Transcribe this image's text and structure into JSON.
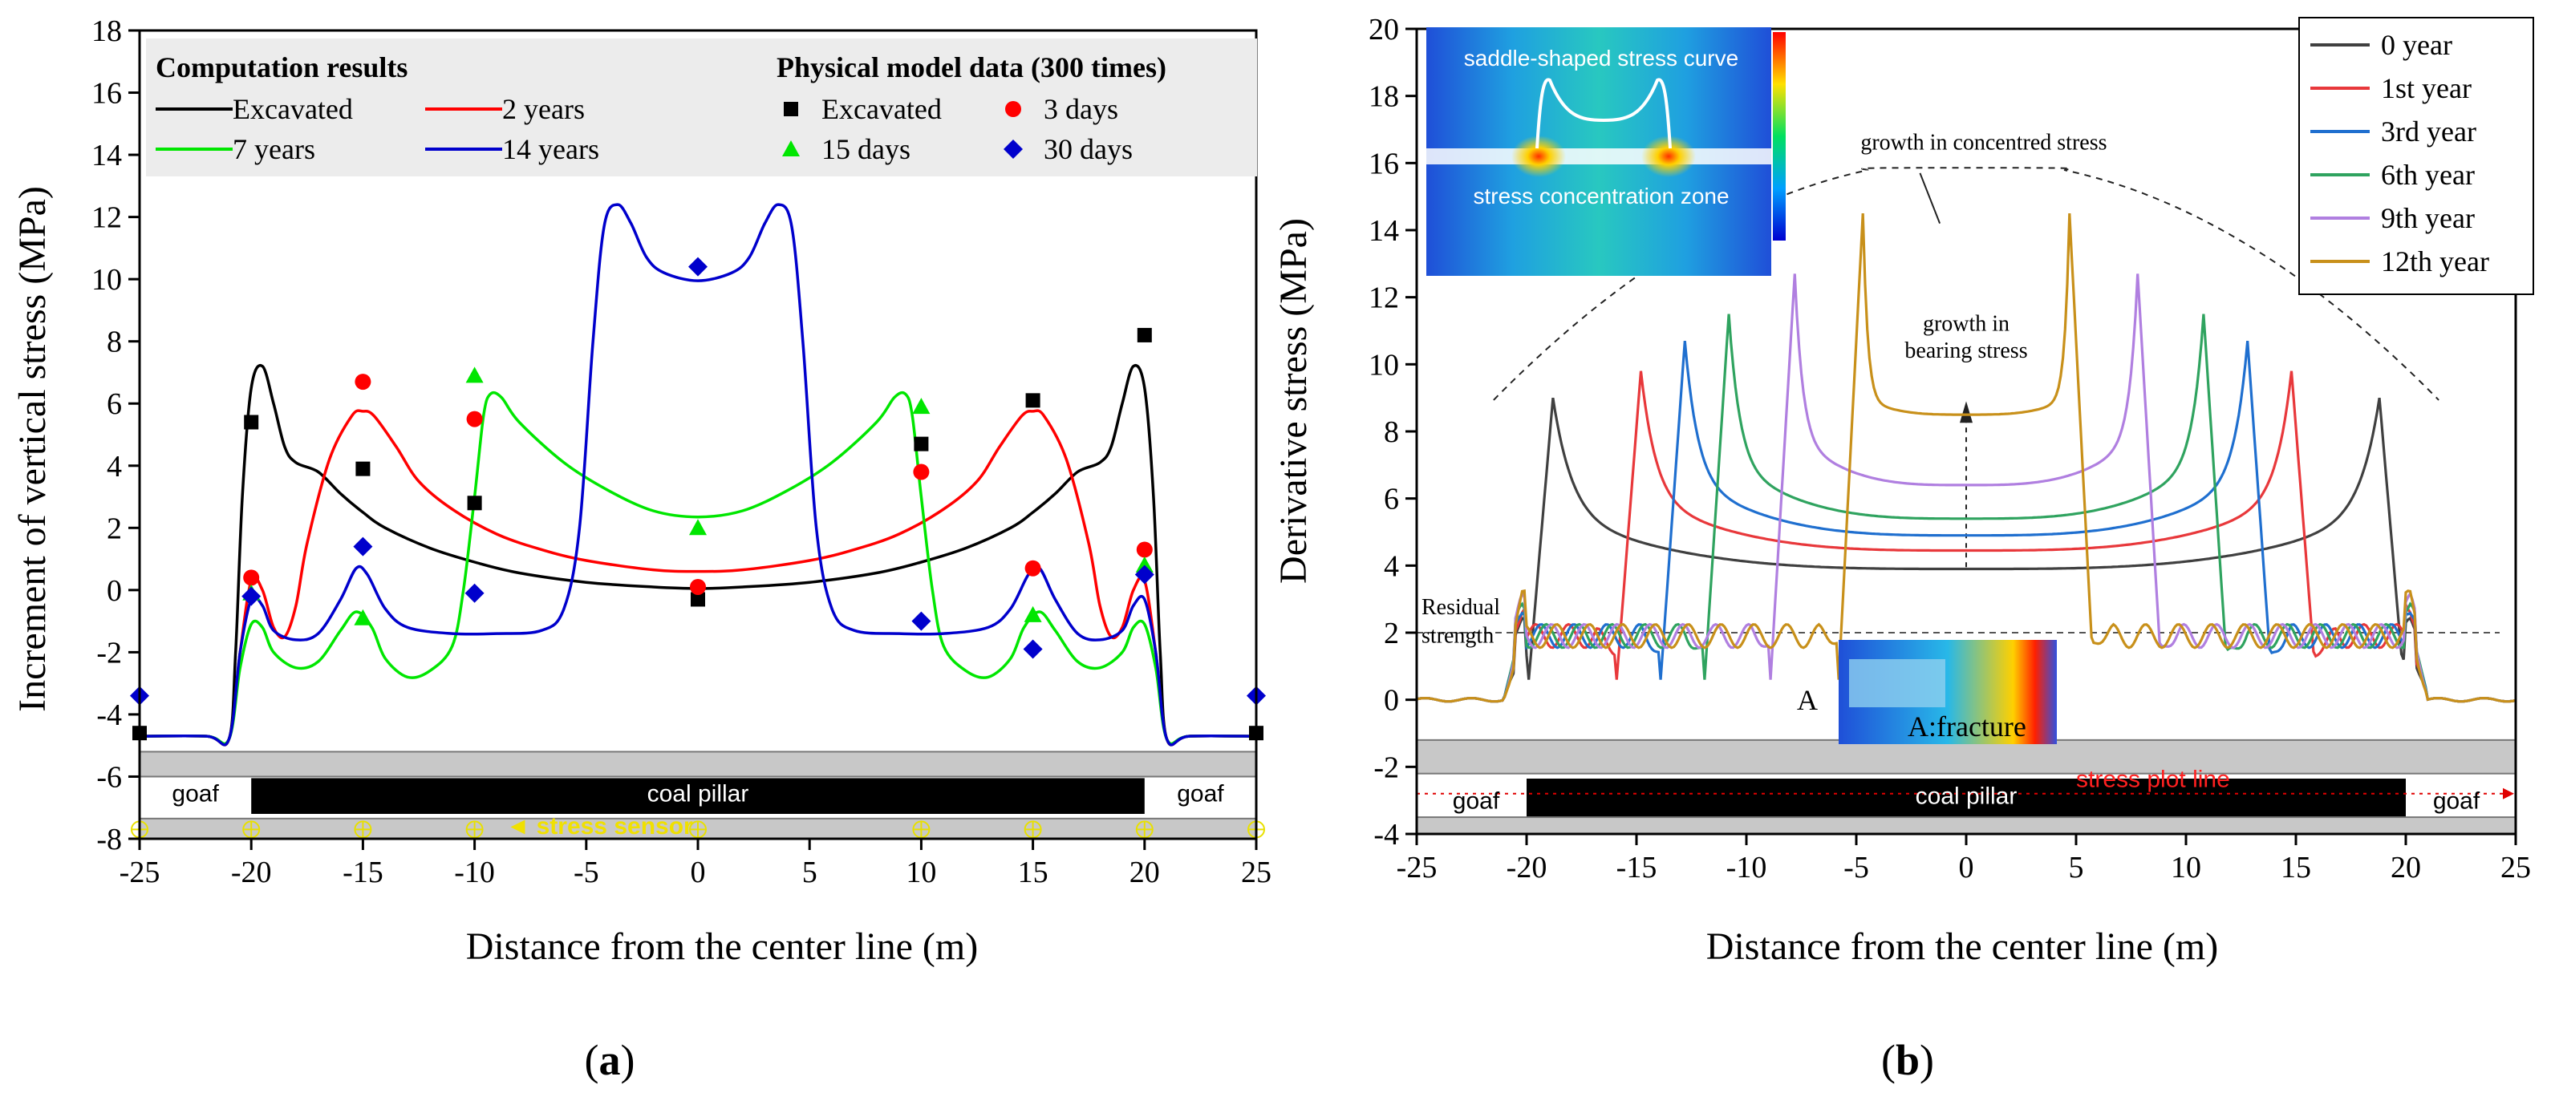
{
  "chart_data": [
    {
      "id": "a",
      "type": "line",
      "panel_label": "(a)",
      "panel_letter": "a",
      "xlabel": "Distance from the center line (m)",
      "ylabel": "Increment of vertical stress (MPa)",
      "xlim": [
        -25,
        25
      ],
      "ylim": [
        -8,
        18
      ],
      "xticks": [
        -25,
        -20,
        -15,
        -10,
        -5,
        0,
        5,
        10,
        15,
        20,
        25
      ],
      "yticks": [
        -8,
        -6,
        -4,
        -2,
        0,
        2,
        4,
        6,
        8,
        10,
        12,
        14,
        16,
        18
      ],
      "legend": {
        "computation_title": "Computation results",
        "physical_title": "Physical model data (300 times)"
      },
      "series": [
        {
          "name": "Excavated",
          "color": "#000000",
          "kind": "line",
          "points": [
            [
              -25,
              -4.7
            ],
            [
              -22,
              -4.7
            ],
            [
              -21,
              -4.8
            ],
            [
              -20.7,
              -2
            ],
            [
              -20.4,
              3
            ],
            [
              -20,
              6.5
            ],
            [
              -19.5,
              7.2
            ],
            [
              -19,
              6
            ],
            [
              -18.5,
              4.6
            ],
            [
              -18,
              4.1
            ],
            [
              -17,
              3.8
            ],
            [
              -16,
              3.1
            ],
            [
              -15,
              2.5
            ],
            [
              -14,
              2.0
            ],
            [
              -12,
              1.35
            ],
            [
              -10,
              0.9
            ],
            [
              -8,
              0.55
            ],
            [
              -5,
              0.25
            ],
            [
              -2,
              0.1
            ],
            [
              0,
              0.05
            ],
            [
              2,
              0.1
            ],
            [
              5,
              0.25
            ],
            [
              8,
              0.55
            ],
            [
              10,
              0.9
            ],
            [
              12,
              1.35
            ],
            [
              14,
              2.0
            ],
            [
              15,
              2.5
            ],
            [
              16,
              3.1
            ],
            [
              17,
              3.8
            ],
            [
              18,
              4.1
            ],
            [
              18.5,
              4.6
            ],
            [
              19,
              6
            ],
            [
              19.5,
              7.2
            ],
            [
              20,
              6.5
            ],
            [
              20.4,
              3
            ],
            [
              20.7,
              -2
            ],
            [
              21,
              -4.8
            ],
            [
              22,
              -4.7
            ],
            [
              25,
              -4.7
            ]
          ]
        },
        {
          "name": "2 years",
          "color": "#ff0000",
          "kind": "line",
          "points": [
            [
              -25,
              -4.7
            ],
            [
              -22,
              -4.7
            ],
            [
              -21,
              -4.8
            ],
            [
              -20.5,
              -2
            ],
            [
              -20,
              0.3
            ],
            [
              -19.5,
              0
            ],
            [
              -19,
              -1.2
            ],
            [
              -18.5,
              -1.5
            ],
            [
              -18,
              -0.5
            ],
            [
              -17.5,
              1.5
            ],
            [
              -16.5,
              4.2
            ],
            [
              -15.5,
              5.6
            ],
            [
              -15,
              5.75
            ],
            [
              -14.5,
              5.6
            ],
            [
              -13.5,
              4.6
            ],
            [
              -12.5,
              3.5
            ],
            [
              -11,
              2.6
            ],
            [
              -9,
              1.8
            ],
            [
              -7,
              1.3
            ],
            [
              -5,
              0.95
            ],
            [
              -2,
              0.65
            ],
            [
              0,
              0.6
            ],
            [
              2,
              0.65
            ],
            [
              5,
              0.95
            ],
            [
              7,
              1.3
            ],
            [
              9,
              1.8
            ],
            [
              11,
              2.6
            ],
            [
              12.5,
              3.5
            ],
            [
              13.5,
              4.6
            ],
            [
              14.5,
              5.6
            ],
            [
              15,
              5.75
            ],
            [
              15.5,
              5.6
            ],
            [
              16.5,
              4.2
            ],
            [
              17.5,
              1.5
            ],
            [
              18,
              -0.5
            ],
            [
              18.5,
              -1.5
            ],
            [
              19,
              -1.2
            ],
            [
              19.5,
              0
            ],
            [
              20,
              0.3
            ],
            [
              20.5,
              -2
            ],
            [
              21,
              -4.8
            ],
            [
              22,
              -4.7
            ],
            [
              25,
              -4.7
            ]
          ]
        },
        {
          "name": "7 years",
          "color": "#00e600",
          "kind": "line",
          "points": [
            [
              -25,
              -4.7
            ],
            [
              -22,
              -4.7
            ],
            [
              -21,
              -4.8
            ],
            [
              -20.5,
              -2.5
            ],
            [
              -20,
              -1.1
            ],
            [
              -19.5,
              -1.2
            ],
            [
              -19,
              -2.0
            ],
            [
              -18,
              -2.5
            ],
            [
              -17,
              -2.3
            ],
            [
              -16,
              -1.3
            ],
            [
              -15.3,
              -0.7
            ],
            [
              -14.6,
              -1.2
            ],
            [
              -14,
              -2.2
            ],
            [
              -13,
              -2.8
            ],
            [
              -12,
              -2.6
            ],
            [
              -11,
              -1.8
            ],
            [
              -10.5,
              0
            ],
            [
              -10,
              3
            ],
            [
              -9.6,
              5.6
            ],
            [
              -9.3,
              6.3
            ],
            [
              -8.8,
              6.2
            ],
            [
              -8,
              5.4
            ],
            [
              -6,
              4.1
            ],
            [
              -4,
              3.2
            ],
            [
              -2,
              2.55
            ],
            [
              0,
              2.35
            ],
            [
              2,
              2.55
            ],
            [
              4,
              3.2
            ],
            [
              6,
              4.1
            ],
            [
              8,
              5.4
            ],
            [
              8.8,
              6.2
            ],
            [
              9.3,
              6.3
            ],
            [
              9.6,
              5.6
            ],
            [
              10,
              3
            ],
            [
              10.5,
              0
            ],
            [
              11,
              -1.8
            ],
            [
              12,
              -2.6
            ],
            [
              13,
              -2.8
            ],
            [
              14,
              -2.2
            ],
            [
              14.6,
              -1.2
            ],
            [
              15.3,
              -0.7
            ],
            [
              16,
              -1.3
            ],
            [
              17,
              -2.3
            ],
            [
              18,
              -2.5
            ],
            [
              19,
              -2.0
            ],
            [
              19.5,
              -1.2
            ],
            [
              20,
              -1.1
            ],
            [
              20.5,
              -2.5
            ],
            [
              21,
              -4.8
            ],
            [
              22,
              -4.7
            ],
            [
              25,
              -4.7
            ]
          ]
        },
        {
          "name": "14 years",
          "color": "#0000cc",
          "kind": "line",
          "points": [
            [
              -25,
              -4.7
            ],
            [
              -22,
              -4.7
            ],
            [
              -21,
              -4.8
            ],
            [
              -20.5,
              -2
            ],
            [
              -20,
              -0.3
            ],
            [
              -19.5,
              -0.5
            ],
            [
              -19,
              -1.3
            ],
            [
              -18,
              -1.6
            ],
            [
              -17,
              -1.4
            ],
            [
              -16,
              -0.3
            ],
            [
              -15.3,
              0.7
            ],
            [
              -14.8,
              0.5
            ],
            [
              -14,
              -0.6
            ],
            [
              -13,
              -1.2
            ],
            [
              -11,
              -1.4
            ],
            [
              -9,
              -1.4
            ],
            [
              -7,
              -1.3
            ],
            [
              -6,
              -0.6
            ],
            [
              -5.3,
              2
            ],
            [
              -4.7,
              8
            ],
            [
              -4.2,
              11.7
            ],
            [
              -3.6,
              12.4
            ],
            [
              -3,
              11.8
            ],
            [
              -2.3,
              10.7
            ],
            [
              -1.5,
              10.2
            ],
            [
              0,
              9.95
            ],
            [
              1.5,
              10.2
            ],
            [
              2.3,
              10.7
            ],
            [
              3,
              11.8
            ],
            [
              3.6,
              12.4
            ],
            [
              4.2,
              11.7
            ],
            [
              4.7,
              8
            ],
            [
              5.3,
              2
            ],
            [
              6,
              -0.6
            ],
            [
              7,
              -1.3
            ],
            [
              9,
              -1.4
            ],
            [
              11,
              -1.4
            ],
            [
              13,
              -1.2
            ],
            [
              14,
              -0.6
            ],
            [
              14.8,
              0.5
            ],
            [
              15.3,
              0.7
            ],
            [
              16,
              -0.3
            ],
            [
              17,
              -1.4
            ],
            [
              18,
              -1.6
            ],
            [
              19,
              -1.3
            ],
            [
              19.5,
              -0.5
            ],
            [
              20,
              -0.3
            ],
            [
              20.5,
              -2
            ],
            [
              21,
              -4.8
            ],
            [
              22,
              -4.7
            ],
            [
              25,
              -4.7
            ]
          ]
        },
        {
          "name": "Excavated",
          "color": "#000000",
          "kind": "marker",
          "marker": "square",
          "points": [
            [
              -25,
              -4.6
            ],
            [
              -20,
              5.4
            ],
            [
              -15,
              3.9
            ],
            [
              -10,
              2.8
            ],
            [
              0,
              -0.3
            ],
            [
              10,
              4.7
            ],
            [
              15,
              6.1
            ],
            [
              20,
              8.2
            ],
            [
              25,
              -4.6
            ]
          ]
        },
        {
          "name": "3 days",
          "color": "#ff0000",
          "kind": "marker",
          "marker": "circle",
          "points": [
            [
              -20,
              0.4
            ],
            [
              -15,
              6.7
            ],
            [
              -10,
              5.5
            ],
            [
              0,
              0.1
            ],
            [
              10,
              3.8
            ],
            [
              15,
              0.7
            ],
            [
              20,
              1.3
            ]
          ]
        },
        {
          "name": "15 days",
          "color": "#00e600",
          "kind": "marker",
          "marker": "triangle",
          "points": [
            [
              -20,
              -0.1
            ],
            [
              -15,
              -0.9
            ],
            [
              -10,
              6.9
            ],
            [
              0,
              2.0
            ],
            [
              10,
              5.9
            ],
            [
              15,
              -0.8
            ],
            [
              20,
              0.8
            ]
          ]
        },
        {
          "name": "30 days",
          "color": "#0000cc",
          "kind": "marker",
          "marker": "diamond",
          "points": [
            [
              -25,
              -3.4
            ],
            [
              -20,
              -0.2
            ],
            [
              -15,
              1.4
            ],
            [
              -10,
              -0.1
            ],
            [
              0,
              10.4
            ],
            [
              10,
              -1.0
            ],
            [
              15,
              -1.9
            ],
            [
              20,
              0.5
            ],
            [
              25,
              -3.4
            ]
          ]
        }
      ],
      "strip": {
        "goaf_left": "goaf",
        "goaf_right": "goaf",
        "pillar": "coal pillar",
        "sensor": "◄ stress sensor",
        "sensor_x": [
          -25,
          -20,
          -15,
          -10,
          0,
          10,
          15,
          20,
          25
        ]
      }
    },
    {
      "id": "b",
      "type": "line",
      "panel_label": "(b)",
      "panel_letter": "b",
      "xlabel": "Distance from the center line (m)",
      "ylabel": "Derivative stress (MPa)",
      "xlim": [
        -25,
        25
      ],
      "ylim": [
        -4,
        20
      ],
      "xticks": [
        -25,
        -20,
        -15,
        -10,
        -5,
        0,
        5,
        10,
        15,
        20,
        25
      ],
      "yticks": [
        -4,
        -2,
        0,
        2,
        4,
        6,
        8,
        10,
        12,
        14,
        16,
        18,
        20
      ],
      "series": [
        {
          "name": "0 year",
          "color": "#404040",
          "peak_x": 18.8,
          "peak": 9.0,
          "center": 3.9
        },
        {
          "name": "1st year",
          "color": "#e8383b",
          "peak_x": 14.8,
          "peak": 9.8,
          "center": 4.45
        },
        {
          "name": "3rd year",
          "color": "#1f6fcf",
          "peak_x": 12.8,
          "peak": 10.7,
          "center": 4.9
        },
        {
          "name": "6th year",
          "color": "#2fa35f",
          "peak_x": 10.8,
          "peak": 11.5,
          "center": 5.4
        },
        {
          "name": "9th year",
          "color": "#b07fe0",
          "peak_x": 7.8,
          "peak": 12.7,
          "center": 6.4
        },
        {
          "name": "12th year",
          "color": "#c8901a",
          "peak_x": 4.7,
          "peak": 14.5,
          "center": 8.5
        }
      ],
      "annotations": {
        "residual_line1": "Residual",
        "residual_line2": "strength",
        "residual_y": 2,
        "growth_concentrated": "growth in concentred stress",
        "growth_bearing1": "growth in",
        "growth_bearing2": "bearing stress",
        "inset_top_title": "saddle-shaped stress curve",
        "inset_top_zone": "stress concentration zone",
        "inset_bottom_label": "A:fracture",
        "inset_bottom_marker": "A"
      },
      "strip": {
        "goaf_left": "goaf",
        "goaf_right": "goaf",
        "pillar": "coal pillar",
        "plot_line": "stress plot line"
      }
    }
  ]
}
